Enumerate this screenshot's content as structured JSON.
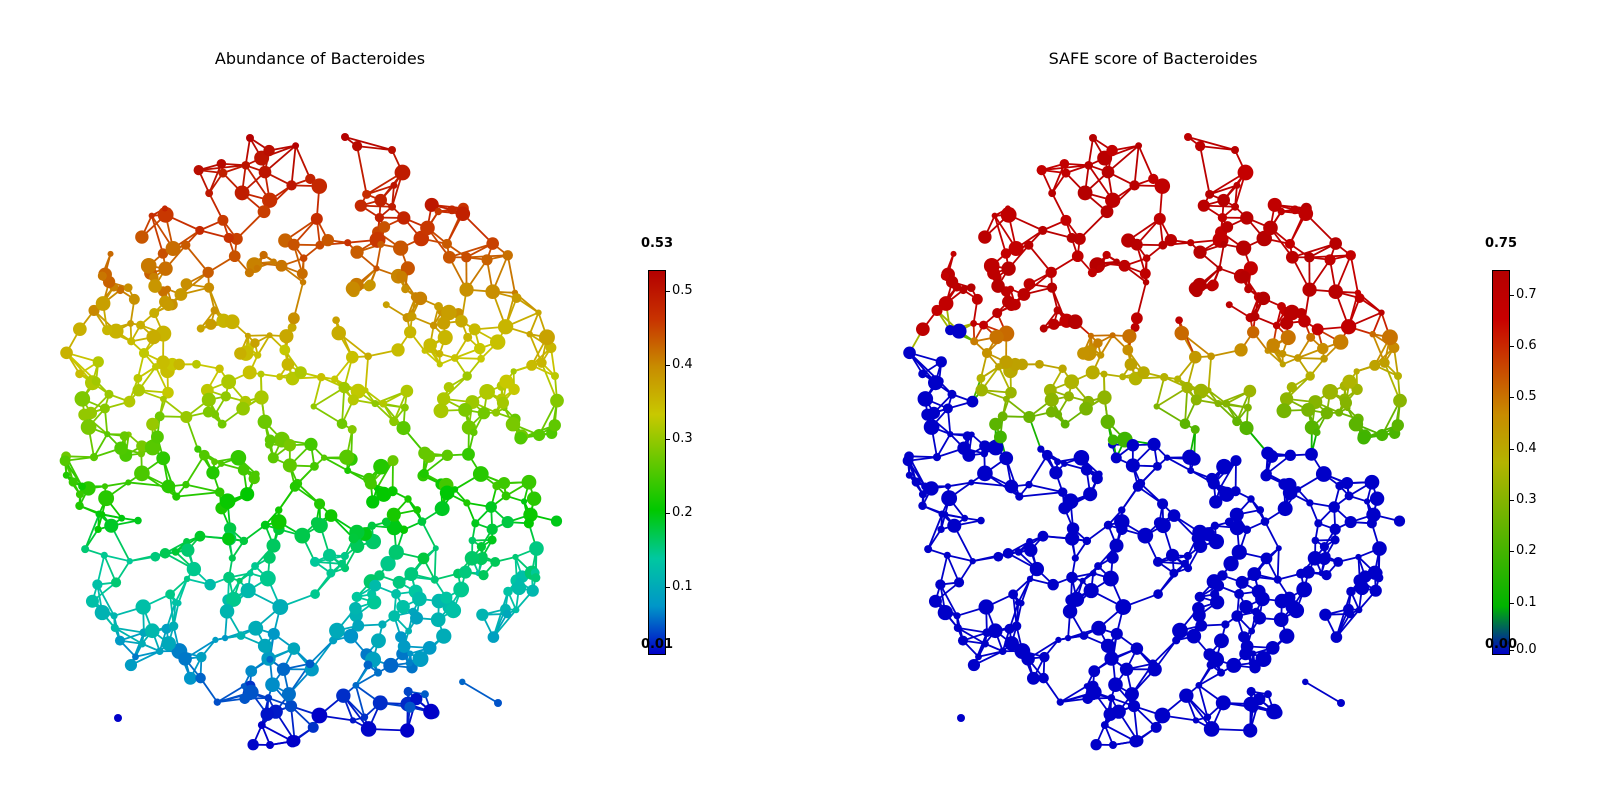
{
  "panels": [
    {
      "title": "Abundance of Bacteroides",
      "colorbar": {
        "max_label": "0.53",
        "min_label": "0.01",
        "ticks": [
          "0.5",
          "0.4",
          "0.3",
          "0.2",
          "0.1"
        ],
        "tick_values": [
          0.5,
          0.4,
          0.3,
          0.2,
          0.1
        ],
        "range": [
          0.01,
          0.53
        ],
        "colormap": [
          "#0000c8",
          "#0096c8",
          "#00c8a0",
          "#00c800",
          "#64c800",
          "#c8c800",
          "#c88c00",
          "#c83200",
          "#b40000"
        ]
      }
    },
    {
      "title": "SAFE score of Bacteroides",
      "colorbar": {
        "max_label": "0.75",
        "min_label": "0.00",
        "ticks": [
          "0.7",
          "0.6",
          "0.5",
          "0.4",
          "0.3",
          "0.2",
          "0.1",
          "0.0"
        ],
        "tick_values": [
          0.7,
          0.6,
          0.5,
          0.4,
          0.3,
          0.2,
          0.1,
          0.0
        ],
        "range": [
          0.0,
          0.75
        ],
        "colormap": [
          "#0000c8",
          "#00b400",
          "#3cb400",
          "#78b400",
          "#b4b400",
          "#c88c00",
          "#c84600",
          "#c80000",
          "#b40000"
        ]
      }
    }
  ]
}
